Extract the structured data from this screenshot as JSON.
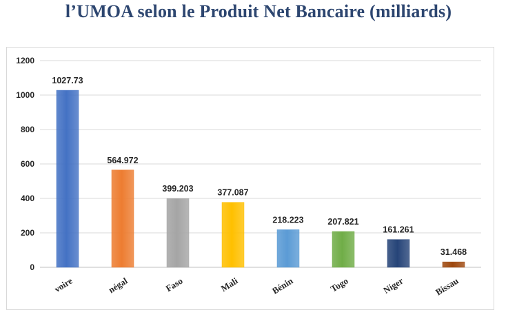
{
  "header": {
    "title": "l’UMOA selon le Produit Net Bancaire (milliards)"
  },
  "chart_data": {
    "type": "bar",
    "title": "",
    "xlabel": "",
    "ylabel": "",
    "categories": [
      "d'Ivoire",
      "Sénégal",
      "Burkina Faso",
      "Mali",
      "Bénin",
      "Togo",
      "Niger",
      "Guinée-Bissau"
    ],
    "category_labels_visible": [
      "voire",
      "négal",
      "Faso",
      "Mali",
      "Bénin",
      "Togo",
      "Niger",
      "Bissau"
    ],
    "values": [
      1027.73,
      564.972,
      399.203,
      377.087,
      218.223,
      207.821,
      161.261,
      31.468
    ],
    "value_labels": [
      "1027.73",
      "564.972",
      "399.203",
      "377.087",
      "218.223",
      "207.821",
      "161.261",
      "31.468"
    ],
    "colors": [
      "#4472c4",
      "#ed7d31",
      "#a5a5a5",
      "#ffc000",
      "#5b9bd5",
      "#70ad47",
      "#264478",
      "#9e480e"
    ],
    "ylim": [
      0,
      1200
    ],
    "yticks": [
      0,
      200,
      400,
      600,
      800,
      1000,
      1200
    ],
    "grid": true,
    "legend": "none"
  }
}
